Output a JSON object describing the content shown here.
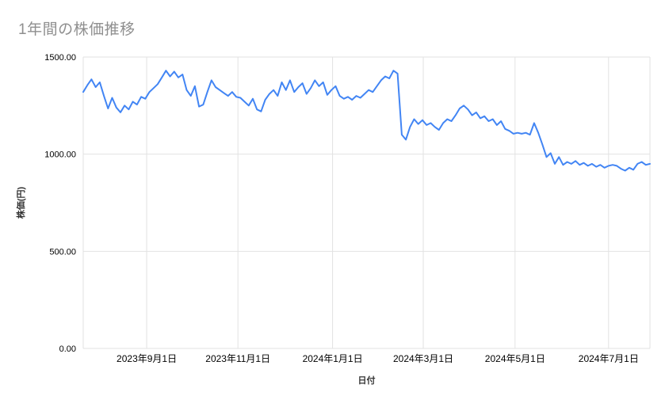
{
  "title": "1年間の株価推移",
  "chart_data": {
    "type": "line",
    "title": "1年間の株価推移",
    "xlabel": "日付",
    "ylabel": "株価(円)",
    "ylim": [
      0,
      1500
    ],
    "y_ticks": [
      0,
      500,
      1000,
      1500
    ],
    "y_tick_labels": [
      "0.00",
      "500.00",
      "1000.00",
      "1500.00"
    ],
    "x_tick_labels": [
      "2023年9月1日",
      "2023年11月1日",
      "2024年1月1日",
      "2024年3月1日",
      "2024年5月1日",
      "2024年7月1日"
    ],
    "x_tick_positions": [
      0.112,
      0.273,
      0.44,
      0.6,
      0.762,
      0.927
    ],
    "line_color": "#4285f4",
    "grid_color": "#e2e2e2",
    "tick_label_color": "#000000",
    "axis_title_color": "#333333",
    "legend": "none",
    "grid": true,
    "values": [
      1320,
      1355,
      1385,
      1345,
      1370,
      1300,
      1235,
      1290,
      1240,
      1215,
      1250,
      1230,
      1270,
      1255,
      1295,
      1285,
      1320,
      1340,
      1360,
      1395,
      1430,
      1400,
      1425,
      1395,
      1410,
      1330,
      1300,
      1350,
      1245,
      1255,
      1320,
      1380,
      1345,
      1330,
      1315,
      1300,
      1320,
      1295,
      1290,
      1270,
      1250,
      1285,
      1230,
      1220,
      1280,
      1310,
      1330,
      1300,
      1370,
      1330,
      1380,
      1320,
      1345,
      1365,
      1310,
      1340,
      1380,
      1350,
      1370,
      1305,
      1330,
      1350,
      1300,
      1285,
      1295,
      1280,
      1300,
      1290,
      1310,
      1330,
      1320,
      1350,
      1380,
      1400,
      1390,
      1430,
      1415,
      1100,
      1075,
      1140,
      1180,
      1155,
      1175,
      1150,
      1160,
      1140,
      1125,
      1160,
      1180,
      1170,
      1200,
      1235,
      1250,
      1230,
      1200,
      1215,
      1185,
      1195,
      1170,
      1180,
      1150,
      1170,
      1130,
      1120,
      1105,
      1110,
      1105,
      1110,
      1100,
      1160,
      1110,
      1050,
      985,
      1005,
      950,
      985,
      945,
      960,
      950,
      965,
      945,
      955,
      940,
      950,
      935,
      945,
      930,
      940,
      945,
      940,
      925,
      915,
      930,
      920,
      950,
      960,
      945,
      950
    ]
  }
}
